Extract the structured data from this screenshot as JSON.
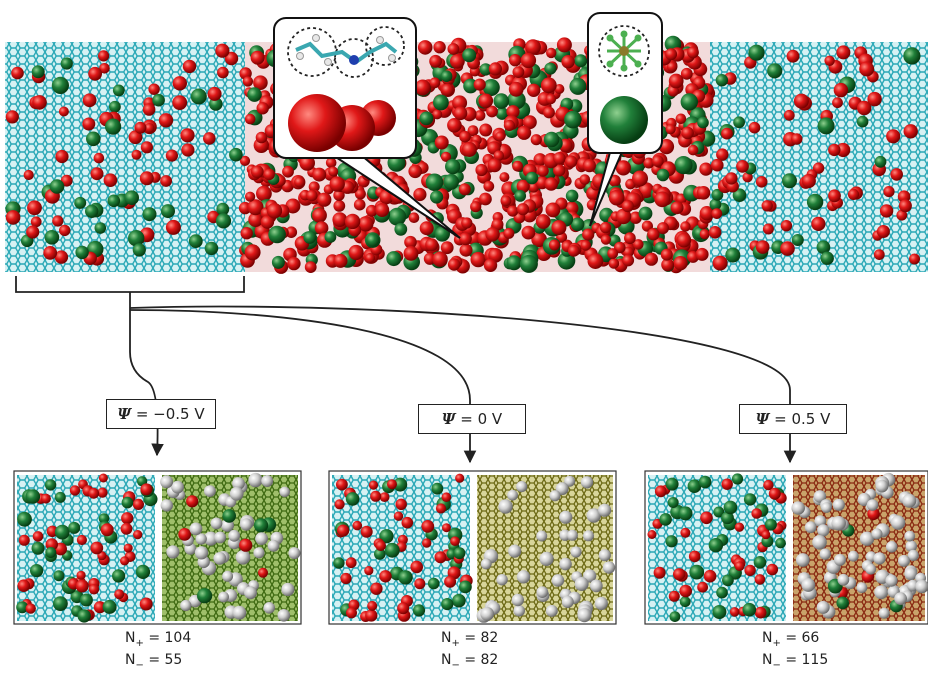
{
  "colors": {
    "electrode": "#37b7c4",
    "electrode_dark": "#1d7f8c",
    "cation": "#d51414",
    "anion": "#1f7a2a",
    "neutral": "#c9c9c9",
    "electrode_gold": "#9a9a30",
    "electrode_red": "#a33a22"
  },
  "icons": {
    "cation_callout": "cation-molecule-icon",
    "anion_callout": "anion-molecule-icon"
  },
  "panels": [
    {
      "potential": {
        "symbol": "Ψ",
        "rest": " = −0.5 V"
      },
      "n_plus": {
        "label": "N",
        "sub": "+",
        "rest": " = 104"
      },
      "n_minus": {
        "label": "N",
        "sub": "−",
        "rest": " = 55"
      },
      "right_tint": "green"
    },
    {
      "potential": {
        "symbol": "Ψ",
        "rest": " = 0 V"
      },
      "n_plus": {
        "label": "N",
        "sub": "+",
        "rest": " = 82"
      },
      "n_minus": {
        "label": "N",
        "sub": "−",
        "rest": " = 82"
      },
      "right_tint": "gold"
    },
    {
      "potential": {
        "symbol": "Ψ",
        "rest": " = 0.5 V"
      },
      "n_plus": {
        "label": "N",
        "sub": "+",
        "rest": " = 66"
      },
      "n_minus": {
        "label": "N",
        "sub": "−",
        "rest": " = 115"
      },
      "right_tint": "red"
    }
  ]
}
